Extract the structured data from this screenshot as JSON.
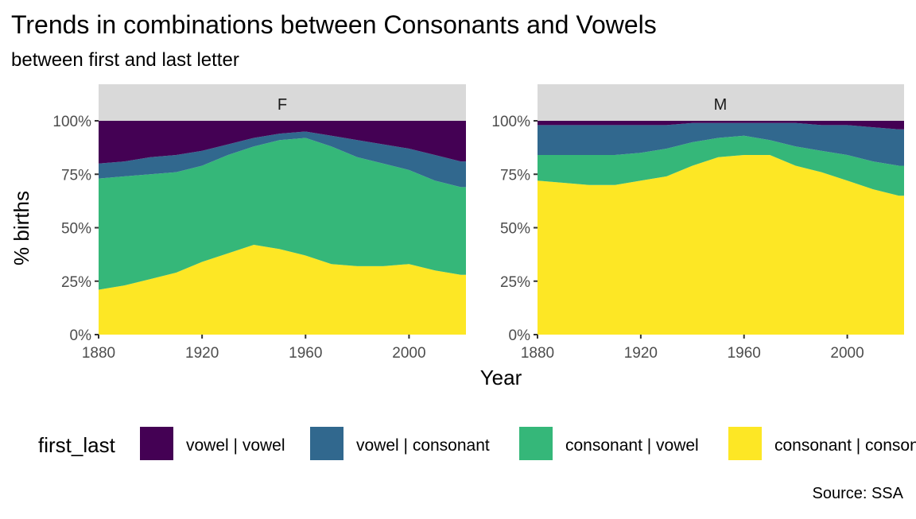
{
  "title": "Trends in combinations between Consonants and Vowels",
  "subtitle": "between first and last letter",
  "caption": "Source: SSA",
  "colors": {
    "vowel_vowel": "#440154",
    "vowel_consonant": "#31688E",
    "consonant_vowel": "#35B779",
    "consonant_consonant": "#FDE725",
    "strip_bg": "#D9D9D9",
    "tick": "#333333",
    "axis_text": "#4D4D4D"
  },
  "legend": {
    "title": "first_last",
    "items": [
      {
        "key": "vowel_vowel",
        "label": "vowel | vowel"
      },
      {
        "key": "vowel_consonant",
        "label": "vowel | consonant"
      },
      {
        "key": "consonant_vowel",
        "label": "consonant | vowel"
      },
      {
        "key": "consonant_consonant",
        "label": "consonant | consonant"
      }
    ]
  },
  "chart_data": {
    "type": "area",
    "stacked": "fill",
    "xlabel": "Year",
    "ylabel": "% births",
    "xlim": [
      1880,
      2022
    ],
    "ylim": [
      0,
      1
    ],
    "x_ticks": [
      1880,
      1920,
      1960,
      2000
    ],
    "y_ticks": [
      {
        "v": 0,
        "label": "0%"
      },
      {
        "v": 0.25,
        "label": "25%"
      },
      {
        "v": 0.5,
        "label": "50%"
      },
      {
        "v": 0.75,
        "label": "75%"
      },
      {
        "v": 1,
        "label": "100%"
      }
    ],
    "grid": false,
    "legend_position": "bottom",
    "facets": [
      {
        "label": "F",
        "x": [
          1880,
          1890,
          1900,
          1910,
          1920,
          1930,
          1940,
          1950,
          1960,
          1970,
          1980,
          1990,
          2000,
          2010,
          2020
        ],
        "cumulative_boundaries": {
          "consonant_consonant": [
            0.21,
            0.23,
            0.26,
            0.29,
            0.34,
            0.38,
            0.42,
            0.4,
            0.37,
            0.33,
            0.32,
            0.32,
            0.33,
            0.3,
            0.28
          ],
          "consonant_vowel": [
            0.73,
            0.74,
            0.75,
            0.76,
            0.79,
            0.84,
            0.88,
            0.91,
            0.92,
            0.88,
            0.83,
            0.8,
            0.77,
            0.72,
            0.69
          ],
          "vowel_consonant": [
            0.8,
            0.81,
            0.83,
            0.84,
            0.86,
            0.89,
            0.92,
            0.94,
            0.95,
            0.93,
            0.91,
            0.89,
            0.87,
            0.84,
            0.81
          ],
          "vowel_vowel": [
            1,
            1,
            1,
            1,
            1,
            1,
            1,
            1,
            1,
            1,
            1,
            1,
            1,
            1,
            1
          ]
        }
      },
      {
        "label": "M",
        "x": [
          1880,
          1890,
          1900,
          1910,
          1920,
          1930,
          1940,
          1950,
          1960,
          1970,
          1980,
          1990,
          2000,
          2010,
          2020
        ],
        "cumulative_boundaries": {
          "consonant_consonant": [
            0.72,
            0.71,
            0.7,
            0.7,
            0.72,
            0.74,
            0.79,
            0.83,
            0.84,
            0.84,
            0.79,
            0.76,
            0.72,
            0.68,
            0.65
          ],
          "consonant_vowel": [
            0.84,
            0.84,
            0.84,
            0.84,
            0.85,
            0.87,
            0.9,
            0.92,
            0.93,
            0.91,
            0.88,
            0.86,
            0.84,
            0.81,
            0.79
          ],
          "vowel_consonant": [
            0.98,
            0.98,
            0.98,
            0.98,
            0.98,
            0.98,
            0.99,
            0.99,
            0.99,
            0.99,
            0.99,
            0.98,
            0.98,
            0.97,
            0.96
          ],
          "vowel_vowel": [
            1,
            1,
            1,
            1,
            1,
            1,
            1,
            1,
            1,
            1,
            1,
            1,
            1,
            1,
            1
          ]
        }
      }
    ]
  }
}
